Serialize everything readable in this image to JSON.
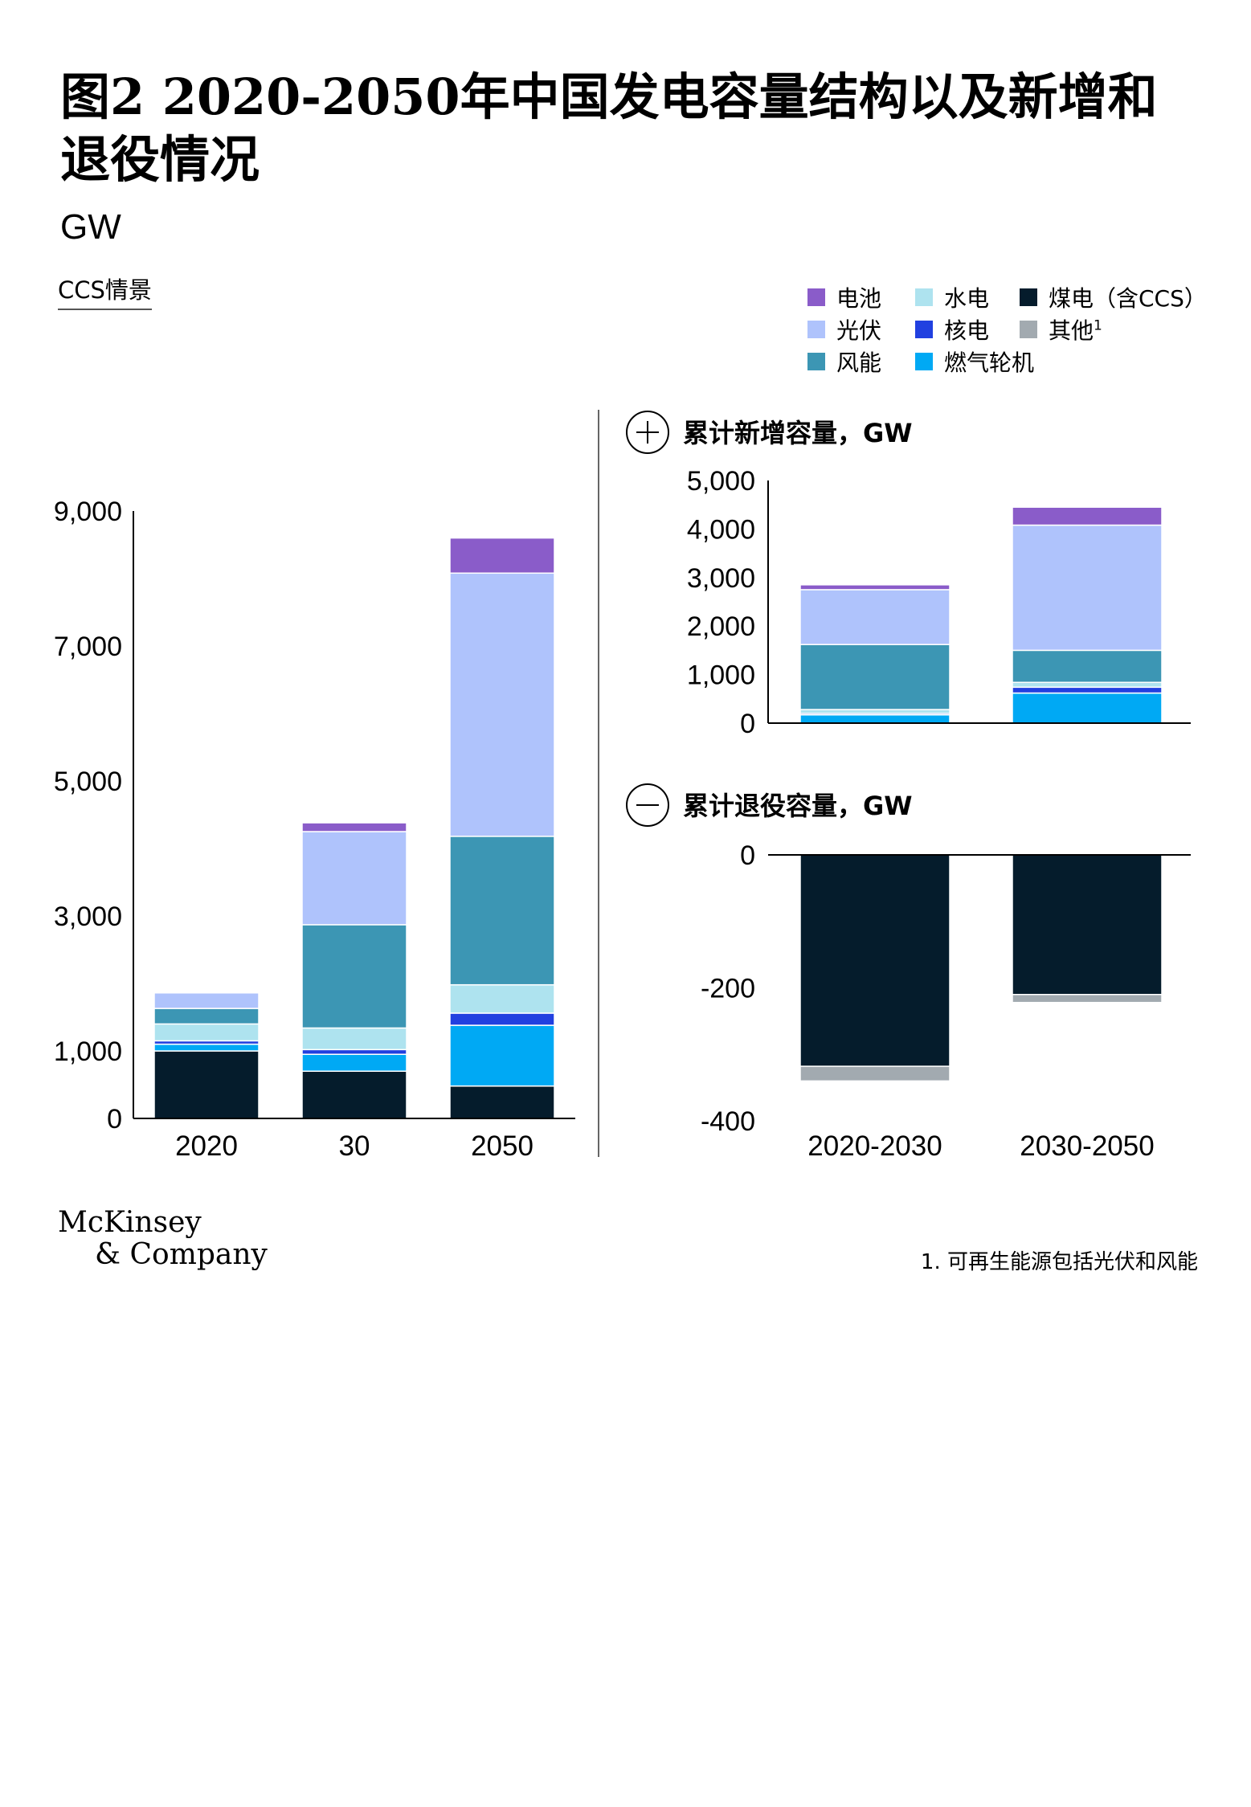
{
  "title": "图2 2020-2050年中国发电容量结构以及新增和退役情况",
  "unit": "GW",
  "scenario": "CCS情景",
  "legend": [
    {
      "key": "battery",
      "label": "电池",
      "color": "#8a5cc9"
    },
    {
      "key": "hydro",
      "label": "水电",
      "color": "#aee3ef"
    },
    {
      "key": "coal",
      "label": "煤电（含CCS）",
      "color": "#051c2c"
    },
    {
      "key": "solar",
      "label": "光伏",
      "color": "#afc3fc"
    },
    {
      "key": "nuclear",
      "label": "核电",
      "color": "#2140e0"
    },
    {
      "key": "other",
      "label": "其他",
      "sup": "1",
      "color": "#a2aab0"
    },
    {
      "key": "wind",
      "label": "风能",
      "color": "#3c96b4"
    },
    {
      "key": "gas",
      "label": "燃气轮机",
      "color": "#00a9f4"
    }
  ],
  "panels": {
    "added_title": "累计新增容量，GW",
    "retired_title": "累计退役容量，GW",
    "plus_symbol": "+",
    "minus_symbol": "−"
  },
  "chart_data": [
    {
      "type": "bar",
      "stacked": true,
      "name": "capacity",
      "categories": [
        "2020",
        "30",
        "2050"
      ],
      "yticks": [
        "9,000",
        "7,000",
        "5,000",
        "3,000",
        "1,000",
        "0"
      ],
      "ylim": [
        0,
        9000
      ],
      "series": [
        {
          "name": "煤电（含CCS）",
          "values": [
            1000,
            700,
            480
          ]
        },
        {
          "name": "燃气轮机",
          "values": [
            100,
            250,
            900
          ]
        },
        {
          "name": "核电",
          "values": [
            50,
            70,
            180
          ]
        },
        {
          "name": "水电",
          "values": [
            250,
            320,
            420
          ]
        },
        {
          "name": "风能",
          "values": [
            230,
            1530,
            2200
          ]
        },
        {
          "name": "光伏",
          "values": [
            230,
            1380,
            3900
          ]
        },
        {
          "name": "电池",
          "values": [
            0,
            130,
            520
          ]
        }
      ]
    },
    {
      "type": "bar",
      "stacked": true,
      "name": "added",
      "categories": [
        "2020-2030",
        "2030-2050"
      ],
      "yticks": [
        "5,000",
        "4,000",
        "3,000",
        "2,000",
        "1,000",
        "0"
      ],
      "ylim": [
        0,
        5000
      ],
      "series": [
        {
          "name": "燃气轮机",
          "values": [
            170,
            620
          ]
        },
        {
          "name": "核电",
          "values": [
            30,
            120
          ]
        },
        {
          "name": "水电",
          "values": [
            80,
            100
          ]
        },
        {
          "name": "风能",
          "values": [
            1340,
            660
          ]
        },
        {
          "name": "光伏",
          "values": [
            1130,
            2580
          ]
        },
        {
          "name": "电池",
          "values": [
            100,
            370
          ]
        }
      ]
    },
    {
      "type": "bar",
      "stacked": true,
      "name": "retired",
      "categories": [
        "2020-2030",
        "2030-2050"
      ],
      "xlabels": [
        "2020-2030",
        "2030-2050"
      ],
      "yticks": [
        "0",
        "-200",
        "-400"
      ],
      "ylim": [
        -400,
        0
      ],
      "series": [
        {
          "name": "煤电（含CCS）",
          "values": [
            -318,
            -210
          ]
        },
        {
          "name": "其他",
          "values": [
            -22,
            -12
          ]
        }
      ]
    }
  ],
  "footer": {
    "brand_line1": "McKinsey",
    "brand_line2": "& Company",
    "footnote": "1. 可再生能源包括光伏和风能"
  }
}
